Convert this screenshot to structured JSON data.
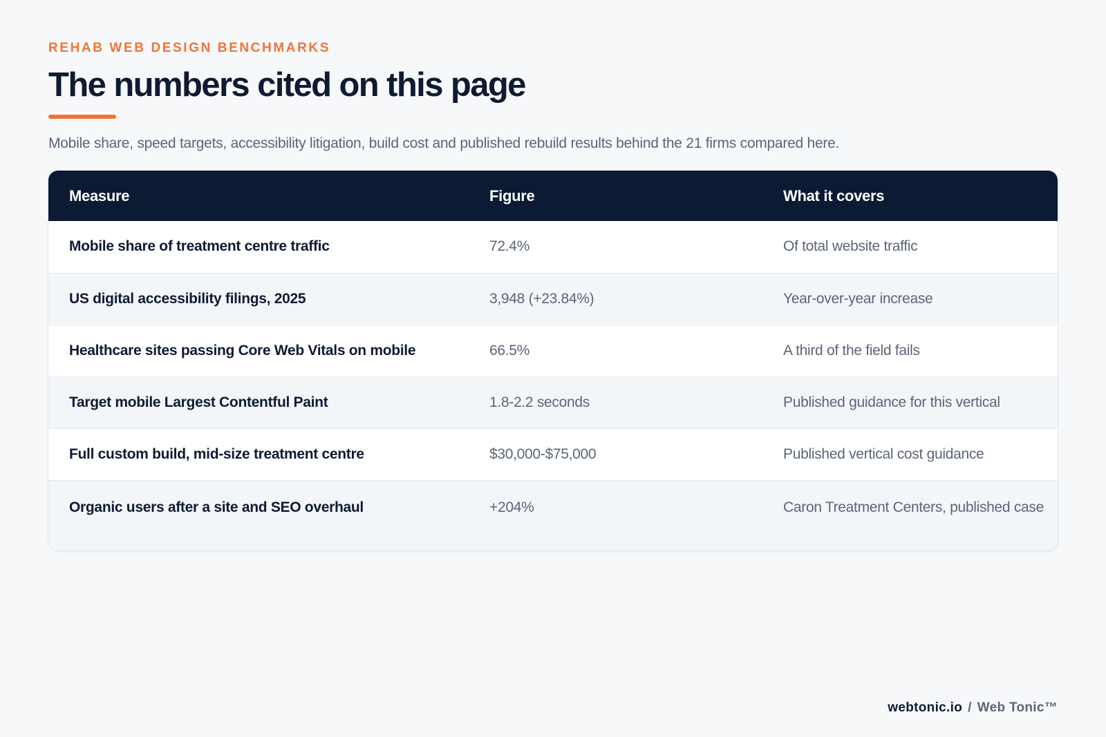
{
  "header": {
    "kicker": "REHAB WEB DESIGN BENCHMARKS",
    "title": "The numbers cited on this page",
    "subtitle": "Mobile share, speed targets, accessibility litigation, build cost and published rebuild results behind the 21 firms compared here."
  },
  "table": {
    "columns": [
      "Measure",
      "Figure",
      "What it covers"
    ],
    "rows": [
      {
        "measure": "Mobile share of treatment centre traffic",
        "figure": "72.4%",
        "covers": "Of total website traffic"
      },
      {
        "measure": "US digital accessibility filings, 2025",
        "figure": "3,948 (+23.84%)",
        "covers": "Year-over-year increase"
      },
      {
        "measure": "Healthcare sites passing Core Web Vitals on mobile",
        "figure": "66.5%",
        "covers": "A third of the field fails"
      },
      {
        "measure": "Target mobile Largest Contentful Paint",
        "figure": "1.8-2.2 seconds",
        "covers": "Published guidance for this vertical"
      },
      {
        "measure": "Full custom build, mid-size treatment centre",
        "figure": "$30,000-$75,000",
        "covers": "Published vertical cost guidance"
      },
      {
        "measure": "Organic users after a site and SEO overhaul",
        "figure": "+204%",
        "covers": "Caron Treatment Centers, published case"
      }
    ]
  },
  "footer": {
    "domain": "webtonic.io",
    "separator": "/",
    "brand": "Web Tonic™"
  },
  "colors": {
    "accent": "#ef7536",
    "header_bg": "#0c1a33",
    "page_bg": "#f6f8fa"
  }
}
